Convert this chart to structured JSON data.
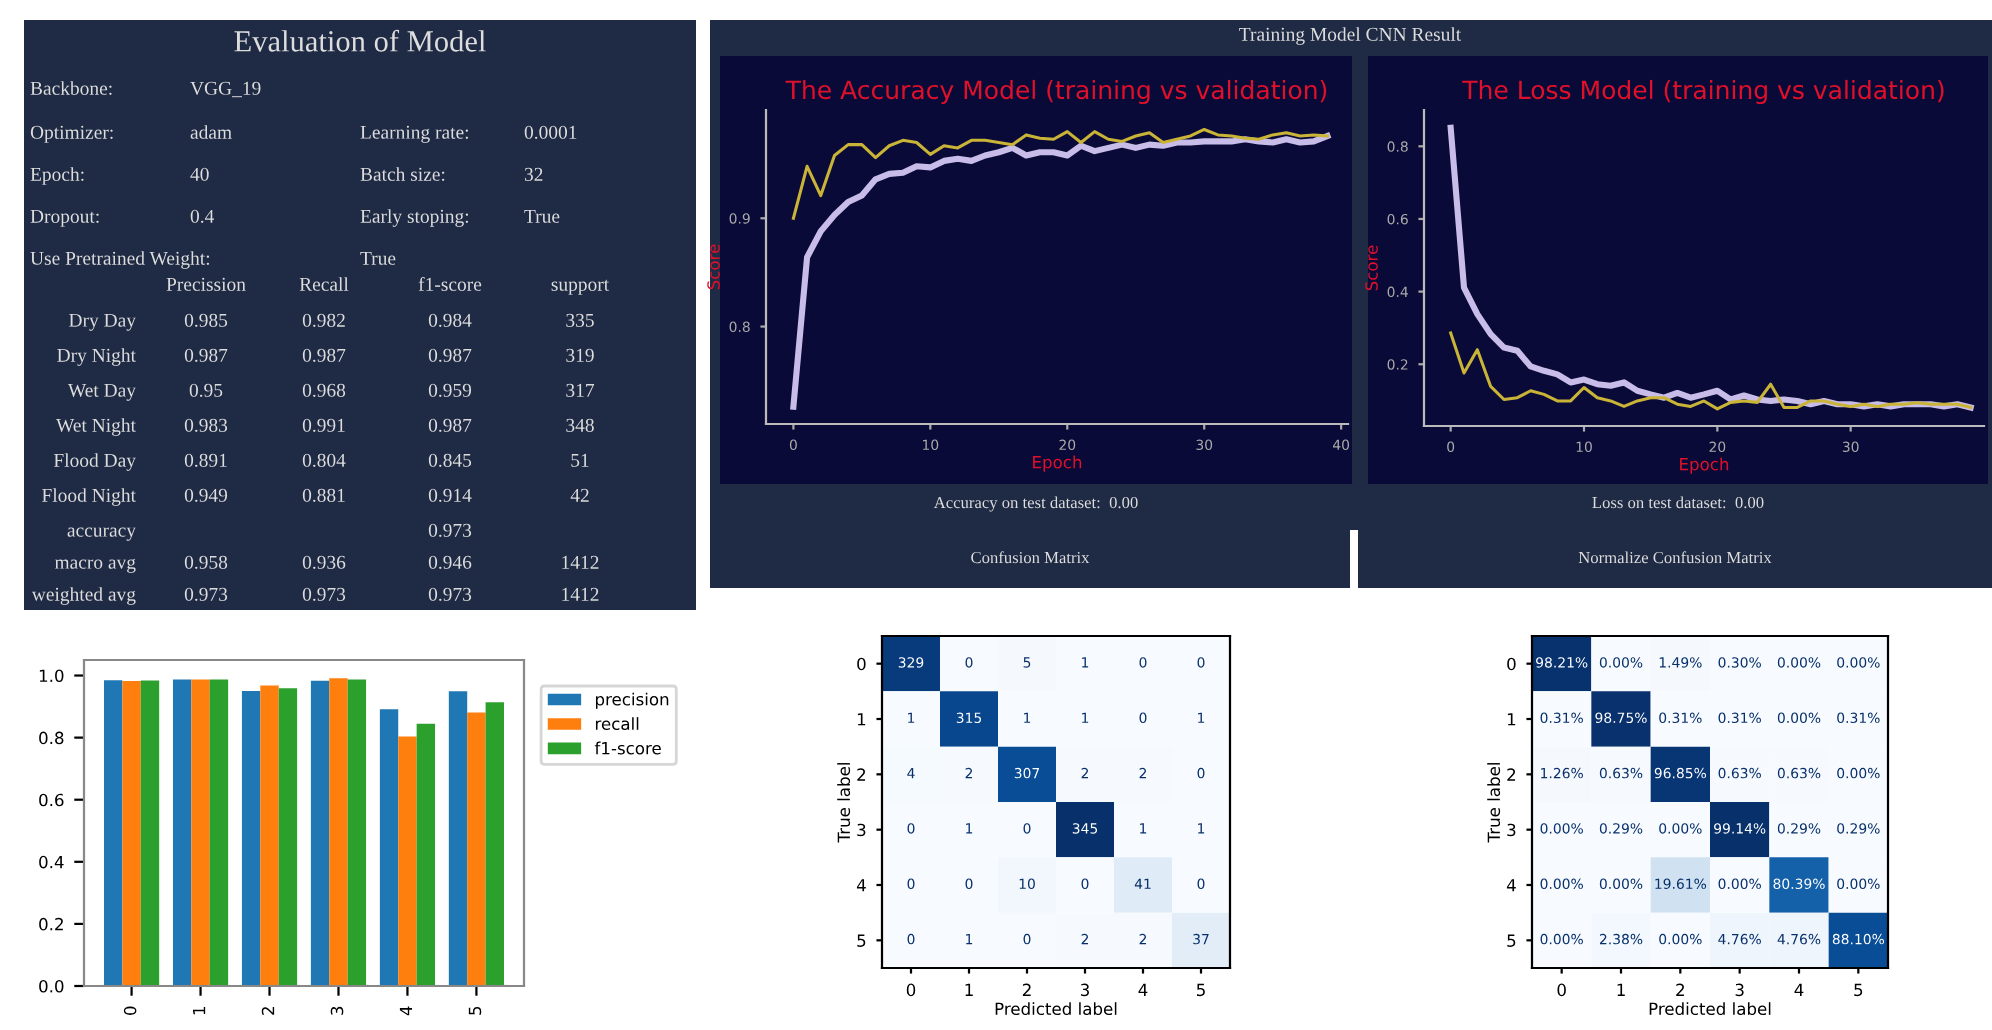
{
  "chart_data": [
    {
      "type": "other",
      "title": "Evaluation of Model",
      "annotations": [
        "Backbone:",
        "VGG_19",
        "Optimizer:",
        "adam",
        "Learning rate:",
        "0.0001",
        "Epoch:",
        "40",
        "Batch size:",
        "32",
        "Dropout:",
        "0.4",
        "Early stoping:",
        "True",
        "Use Pretrained Weight:",
        "True",
        "Precission",
        "Recall",
        "f1-score",
        "support",
        "Dry Day",
        "0.985",
        "0.982",
        "0.984",
        "335",
        "Dry Night",
        "0.987",
        "0.987",
        "0.987",
        "319",
        "Wet Day",
        "0.95",
        "0.968",
        "0.959",
        "317",
        "Wet Night",
        "0.983",
        "0.991",
        "0.987",
        "348",
        "Flood Day",
        "0.891",
        "0.804",
        "0.845",
        "51",
        "Flood Night",
        "0.949",
        "0.881",
        "0.914",
        "42",
        "accuracy",
        "0.973",
        "macro avg",
        "0.958",
        "0.936",
        "0.946",
        "1412",
        "weighted avg",
        "0.973",
        "0.973",
        "0.973",
        "1412"
      ]
    },
    {
      "type": "bar",
      "categories": [
        "0",
        "1",
        "2",
        "3",
        "4",
        "5"
      ],
      "ylim": [
        0,
        1.05
      ],
      "yticks": [
        {
          "value": 0,
          "label": "0.0"
        },
        {
          "value": 0.2,
          "label": "0.2"
        },
        {
          "value": 0.4,
          "label": "0.4"
        },
        {
          "value": 0.6,
          "label": "0.6"
        },
        {
          "value": 0.8,
          "label": "0.8"
        },
        {
          "value": 1,
          "label": "1.0"
        }
      ],
      "legend": "right",
      "series": [
        {
          "name": "precision",
          "color": "#1f77b4",
          "values": [
            0.985,
            0.987,
            0.95,
            0.983,
            0.891,
            0.949
          ]
        },
        {
          "name": "recall",
          "color": "#ff7f0e",
          "values": [
            0.982,
            0.987,
            0.968,
            0.991,
            0.804,
            0.881
          ]
        },
        {
          "name": "f1-score",
          "color": "#2ca02c",
          "values": [
            0.984,
            0.987,
            0.959,
            0.987,
            0.845,
            0.914
          ]
        }
      ]
    },
    {
      "type": "other",
      "title": "Training Model CNN Result"
    },
    {
      "type": "line",
      "title": "The Accuracy Model (training vs validation)",
      "xlabel": "Epoch",
      "ylabel": "Score",
      "xlim": [
        -2,
        40.5
      ],
      "ylim": [
        0.71,
        1.0
      ],
      "xticks": [
        0,
        10,
        20,
        30,
        40
      ],
      "yticks": [
        0.8,
        0.9
      ],
      "annotations": [
        "Accuracy on test dataset:  0.00"
      ],
      "x": [
        0,
        1,
        2,
        3,
        4,
        5,
        6,
        7,
        8,
        9,
        10,
        11,
        12,
        13,
        14,
        15,
        16,
        17,
        18,
        19,
        20,
        21,
        22,
        23,
        24,
        25,
        26,
        27,
        28,
        29,
        30,
        31,
        32,
        33,
        34,
        35,
        36,
        37,
        38,
        39
      ],
      "series": [
        {
          "color": "#c8bde8",
          "values": [
            0.726,
            0.864,
            0.888,
            0.903,
            0.915,
            0.921,
            0.936,
            0.941,
            0.942,
            0.948,
            0.947,
            0.953,
            0.955,
            0.953,
            0.958,
            0.961,
            0.965,
            0.958,
            0.961,
            0.961,
            0.958,
            0.967,
            0.962,
            0.965,
            0.968,
            0.965,
            0.968,
            0.967,
            0.97,
            0.97,
            0.971,
            0.971,
            0.971,
            0.973,
            0.971,
            0.97,
            0.973,
            0.97,
            0.971,
            0.976
          ]
        },
        {
          "color": "#c9b437",
          "values": [
            0.9,
            0.948,
            0.921,
            0.958,
            0.968,
            0.968,
            0.956,
            0.967,
            0.972,
            0.97,
            0.959,
            0.967,
            0.965,
            0.972,
            0.972,
            0.97,
            0.968,
            0.977,
            0.974,
            0.973,
            0.98,
            0.97,
            0.98,
            0.973,
            0.971,
            0.976,
            0.979,
            0.97,
            0.973,
            0.976,
            0.982,
            0.977,
            0.976,
            0.974,
            0.973,
            0.977,
            0.979,
            0.976,
            0.977,
            0.976
          ]
        }
      ]
    },
    {
      "type": "line",
      "title": "The Loss Model (training vs validation)",
      "xlabel": "Epoch",
      "ylabel": "Score",
      "xlim": [
        -2,
        40
      ],
      "ylim": [
        0.03,
        0.9
      ],
      "xticks": [
        0,
        10,
        20,
        30
      ],
      "yticks": [
        0.2,
        0.4,
        0.6,
        0.8
      ],
      "annotations": [
        "Loss on test dataset:  0.00"
      ],
      "x": [
        0,
        1,
        2,
        3,
        4,
        5,
        6,
        7,
        8,
        9,
        10,
        11,
        12,
        13,
        14,
        15,
        16,
        17,
        18,
        19,
        20,
        21,
        22,
        23,
        24,
        25,
        26,
        27,
        28,
        29,
        30,
        31,
        32,
        33,
        34,
        35,
        36,
        37,
        38,
        39
      ],
      "series": [
        {
          "color": "#c8bde8",
          "values": [
            0.851,
            0.411,
            0.338,
            0.283,
            0.246,
            0.237,
            0.194,
            0.182,
            0.172,
            0.15,
            0.158,
            0.145,
            0.141,
            0.15,
            0.127,
            0.117,
            0.108,
            0.121,
            0.108,
            0.117,
            0.127,
            0.103,
            0.114,
            0.103,
            0.099,
            0.103,
            0.099,
            0.09,
            0.099,
            0.09,
            0.09,
            0.084,
            0.09,
            0.084,
            0.09,
            0.09,
            0.09,
            0.084,
            0.09,
            0.081
          ]
        },
        {
          "color": "#c9b437",
          "values": [
            0.286,
            0.176,
            0.24,
            0.139,
            0.103,
            0.108,
            0.127,
            0.117,
            0.099,
            0.099,
            0.136,
            0.108,
            0.099,
            0.084,
            0.099,
            0.108,
            0.108,
            0.09,
            0.084,
            0.099,
            0.077,
            0.095,
            0.099,
            0.095,
            0.145,
            0.081,
            0.081,
            0.099,
            0.099,
            0.09,
            0.084,
            0.09,
            0.084,
            0.09,
            0.09,
            0.094,
            0.09,
            0.09,
            0.09,
            0.081
          ]
        }
      ]
    },
    {
      "type": "heatmap",
      "title": "Confusion Matrix",
      "xlabel": "Predicted label",
      "ylabel": "True label",
      "data_labels": true,
      "categories": [
        "0",
        "1",
        "2",
        "3",
        "4",
        "5"
      ],
      "y_categories": [
        "0",
        "1",
        "2",
        "3",
        "4",
        "5"
      ],
      "cells": [
        [
          329,
          0,
          5,
          1,
          0,
          0
        ],
        [
          1,
          315,
          1,
          1,
          0,
          1
        ],
        [
          4,
          2,
          307,
          2,
          2,
          0
        ],
        [
          0,
          1,
          0,
          345,
          1,
          1
        ],
        [
          0,
          0,
          10,
          0,
          41,
          0
        ],
        [
          0,
          1,
          0,
          2,
          2,
          37
        ]
      ]
    },
    {
      "type": "heatmap",
      "title": "Normalize Confusion Matrix",
      "xlabel": "Predicted label",
      "ylabel": "True label",
      "categories": [
        "0",
        "1",
        "2",
        "3",
        "4",
        "5"
      ],
      "y_categories": [
        "0",
        "1",
        "2",
        "3",
        "4",
        "5"
      ],
      "cells": [
        [
          98.21,
          0.0,
          1.49,
          0.3,
          0.0,
          0.0
        ],
        [
          0.31,
          98.75,
          0.31,
          0.31,
          0.0,
          0.31
        ],
        [
          1.26,
          0.63,
          96.85,
          0.63,
          0.63,
          0.0
        ],
        [
          0.0,
          0.29,
          0.0,
          99.14,
          0.29,
          0.29
        ],
        [
          0.0,
          0.0,
          19.61,
          0.0,
          80.39,
          0.0
        ],
        [
          0.0,
          2.38,
          0.0,
          4.76,
          4.76,
          88.1
        ]
      ],
      "cell_labels": [
        [
          "98.21%",
          "0.00%",
          "1.49%",
          "0.30%",
          "0.00%",
          "0.00%"
        ],
        [
          "0.31%",
          "98.75%",
          "0.31%",
          "0.31%",
          "0.00%",
          "0.31%"
        ],
        [
          "1.26%",
          "0.63%",
          "96.85%",
          "0.63%",
          "0.63%",
          "0.00%"
        ],
        [
          "0.00%",
          "0.29%",
          "0.00%",
          "99.14%",
          "0.29%",
          "0.29%"
        ],
        [
          "0.00%",
          "0.00%",
          "19.61%",
          "0.00%",
          "80.39%",
          "0.00%"
        ],
        [
          "0.00%",
          "2.38%",
          "0.00%",
          "4.76%",
          "4.76%",
          "88.10%"
        ]
      ]
    }
  ]
}
